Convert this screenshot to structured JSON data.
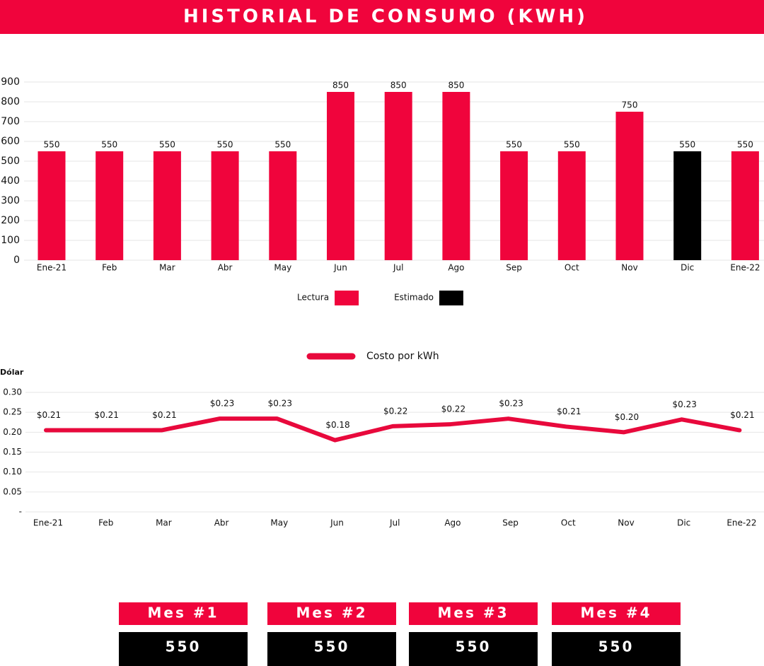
{
  "header": {
    "title": "HISTORIAL DE CONSUMO (KWH)"
  },
  "chart_data": [
    {
      "type": "bar",
      "categories": [
        "Ene-21",
        "Feb",
        "Mar",
        "Abr",
        "May",
        "Jun",
        "Jul",
        "Ago",
        "Sep",
        "Oct",
        "Nov",
        "Dic",
        "Ene-22"
      ],
      "series": [
        {
          "name": "Lectura",
          "color": "#f0043c",
          "values": [
            550,
            550,
            550,
            550,
            550,
            850,
            850,
            850,
            550,
            550,
            750,
            null,
            550
          ]
        },
        {
          "name": "Estimado",
          "color": "#000000",
          "values": [
            null,
            null,
            null,
            null,
            null,
            null,
            null,
            null,
            null,
            null,
            null,
            550,
            null
          ]
        }
      ],
      "ylim": [
        0,
        900
      ],
      "yticks": [
        0,
        100,
        200,
        300,
        400,
        500,
        600,
        700,
        800,
        900
      ],
      "grid": true,
      "legend": "bottom"
    },
    {
      "type": "line",
      "y_label": "Dólar",
      "categories": [
        "Ene-21",
        "Feb",
        "Mar",
        "Abr",
        "May",
        "Jun",
        "Jul",
        "Ago",
        "Sep",
        "Oct",
        "Nov",
        "Dic",
        "Ene-22"
      ],
      "series": [
        {
          "name": "Costo por kWh",
          "color": "#e8093c",
          "values": [
            0.205,
            0.205,
            0.205,
            0.234,
            0.234,
            0.18,
            0.215,
            0.22,
            0.234,
            0.214,
            0.2,
            0.232,
            0.205
          ],
          "value_labels": [
            "$0.21",
            "$0.21",
            "$0.21",
            "$0.23",
            "$0.23",
            "$0.18",
            "$0.22",
            "$0.22",
            "$0.23",
            "$0.21",
            "$0.20",
            "$0.23",
            "$0.21"
          ]
        }
      ],
      "ylim": [
        0,
        0.3
      ],
      "yticks": [
        {
          "value": 0,
          "label": "-"
        },
        0.05,
        {
          "value": 0.1,
          "label": "0.10"
        },
        0.15,
        {
          "value": 0.2,
          "label": "0.20"
        },
        0.25,
        {
          "value": 0.3,
          "label": "0.30"
        }
      ],
      "grid": true,
      "legend": "top"
    }
  ],
  "summary": [
    {
      "label": "Mes #1",
      "value": 550
    },
    {
      "label": "Mes #2",
      "value": 550
    },
    {
      "label": "Mes #3",
      "value": 550
    },
    {
      "label": "Mes #4",
      "value": 550
    }
  ]
}
